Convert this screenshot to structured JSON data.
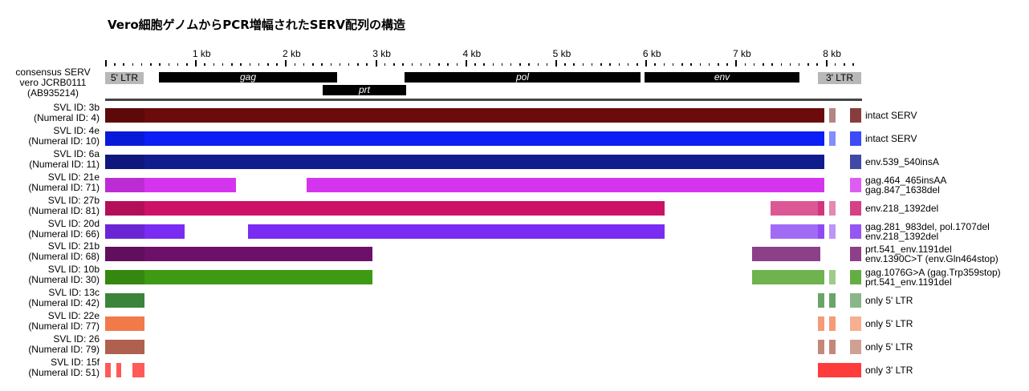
{
  "title": "Vero細胞ゲノムからPCR増幅されたSERV配列の構造",
  "scale": {
    "labels": [
      "1 kb",
      "2 kb",
      "3 kb",
      "4 kb",
      "5 kb",
      "6 kb",
      "7 kb",
      "8 kb"
    ]
  },
  "consensus": {
    "label_lines": [
      "consensus SERV",
      "vero JCRB0111",
      "(AB935214)"
    ],
    "ltr5": "5' LTR",
    "ltr3": "3' LTR",
    "genes": {
      "gag": "gag",
      "prt": "prt",
      "pol": "pol",
      "env": "env"
    }
  },
  "clones": [
    {
      "id_line": "SVL ID: 3b",
      "num_line": "(Numeral ID: 4)",
      "color": "#6b0b0b",
      "note_lines": [
        "intact SERV"
      ]
    },
    {
      "id_line": "SVL ID: 4e",
      "num_line": "(Numeral ID: 10)",
      "color": "#0a1ef5",
      "note_lines": [
        "intact SERV"
      ]
    },
    {
      "id_line": "SVL ID: 6a",
      "num_line": "(Numeral ID: 11)",
      "color": "#101c8e",
      "note_lines": [
        "env.539_540insA"
      ]
    },
    {
      "id_line": "SVL ID: 21e",
      "num_line": "(Numeral ID: 71)",
      "color": "#d534ef",
      "note_lines": [
        "gag.464_465insAA",
        "gag.847_1638del"
      ]
    },
    {
      "id_line": "SVL ID: 27b",
      "num_line": "(Numeral ID: 81)",
      "color": "#cc1166",
      "note_lines": [
        "env.218_1392del"
      ]
    },
    {
      "id_line": "SVL ID: 20d",
      "num_line": "(Numeral ID: 66)",
      "color": "#7a2cf2",
      "note_lines": [
        "gag.281_983del, pol.1707del",
        "env.218_1392del"
      ]
    },
    {
      "id_line": "SVL ID: 21b",
      "num_line": "(Numeral ID: 68)",
      "color": "#6e106a",
      "note_lines": [
        "prt.541_env.1191del",
        "env.1390C>T (env.Gln464stop)"
      ]
    },
    {
      "id_line": "SVL ID: 10b",
      "num_line": "(Numeral ID: 30)",
      "color": "#3d9a12",
      "note_lines": [
        "gag.1076G>A (gag.Trp359stop)",
        "prt.541_env.1191del"
      ]
    },
    {
      "id_line": "SVL ID: 13c",
      "num_line": "(Numeral ID: 42)",
      "color": "#3a853a",
      "note_lines": [
        "only 5' LTR"
      ]
    },
    {
      "id_line": "SVL ID: 22e",
      "num_line": "(Numeral ID: 77)",
      "color": "#f27a48",
      "note_lines": [
        "only 5' LTR"
      ]
    },
    {
      "id_line": "SVL ID: 26",
      "num_line": "(Numeral ID: 79)",
      "color": "#b0604e",
      "note_lines": [
        "only 5' LTR"
      ]
    },
    {
      "id_line": "SVL ID: 15f",
      "num_line": "(Numeral ID: 51)",
      "color": "#ff3c3c",
      "note_lines": [
        "only 3' LTR"
      ]
    }
  ]
}
